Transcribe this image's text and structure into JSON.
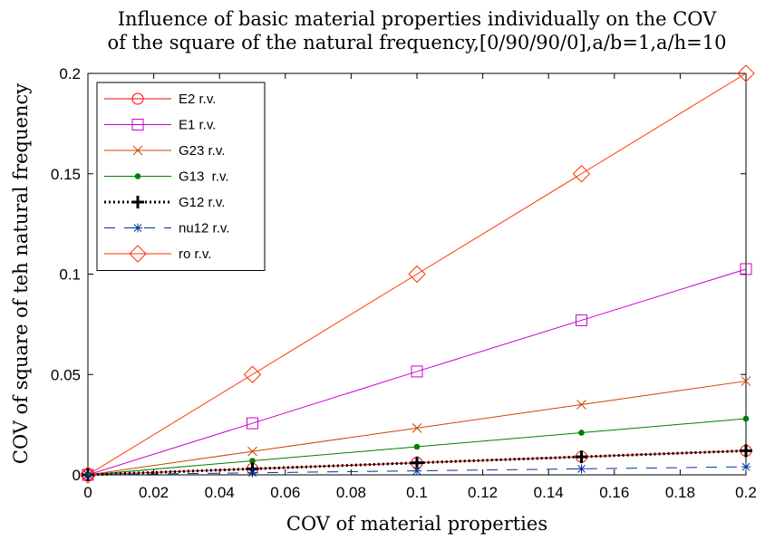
{
  "chart_data": {
    "type": "line",
    "title_lines": [
      "Influence of basic material properties individually on the COV",
      "of the square of the natural frequency,[0/90/90/0],a/b=1,a/h=10"
    ],
    "xlabel": "COV of material properties",
    "ylabel": "COV of square of teh natural frequency",
    "xlim": [
      0,
      0.2
    ],
    "ylim": [
      0,
      0.2
    ],
    "xticks": [
      0,
      0.02,
      0.04,
      0.06,
      0.08,
      0.1,
      0.12,
      0.14,
      0.16,
      0.18,
      0.2
    ],
    "xtick_labels": [
      "0",
      "0.02",
      "0.04",
      "0.06",
      "0.08",
      "0.1",
      "0.12",
      "0.14",
      "0.16",
      "0.18",
      "0.2"
    ],
    "yticks": [
      0,
      0.05,
      0.1,
      0.15,
      0.2
    ],
    "ytick_labels": [
      "0",
      "0.05",
      "0.1",
      "0.15",
      "0.2"
    ],
    "grid": false,
    "legend_position": "top-left",
    "x": [
      0,
      0.05,
      0.1,
      0.15,
      0.2
    ],
    "series": [
      {
        "name": "E2 r.v.",
        "values": [
          0,
          0.003,
          0.006,
          0.009,
          0.012
        ],
        "color": "#ff0000",
        "marker": "circle",
        "dash": "solid"
      },
      {
        "name": "E1 r.v.",
        "values": [
          0,
          0.0257,
          0.0515,
          0.077,
          0.1025
        ],
        "color": "#cc00cc",
        "marker": "square",
        "dash": "solid"
      },
      {
        "name": "G23 r.v.",
        "values": [
          0,
          0.0117,
          0.0233,
          0.035,
          0.0467
        ],
        "color": "#cc4400",
        "marker": "x",
        "dash": "solid"
      },
      {
        "name": "G13  r.v.",
        "values": [
          0,
          0.007,
          0.014,
          0.021,
          0.028
        ],
        "color": "#008000",
        "marker": "dot",
        "dash": "solid"
      },
      {
        "name": "G12 r.v.",
        "values": [
          0,
          0.003,
          0.006,
          0.009,
          0.012
        ],
        "color": "#000000",
        "marker": "plus",
        "dash": "dotted"
      },
      {
        "name": "nu12 r.v.",
        "values": [
          0,
          0.001,
          0.002,
          0.003,
          0.004
        ],
        "color": "#003399",
        "marker": "star",
        "dash": "dashed"
      },
      {
        "name": "ro r.v.",
        "values": [
          0,
          0.05,
          0.1,
          0.15,
          0.2
        ],
        "color": "#ff3300",
        "marker": "diamond",
        "dash": "solid"
      }
    ]
  }
}
